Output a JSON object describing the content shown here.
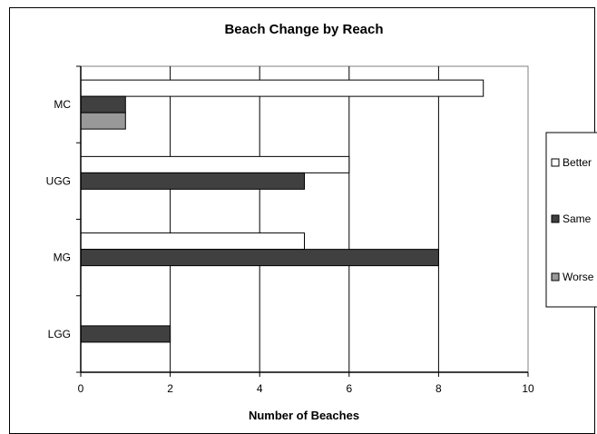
{
  "chart_data": {
    "type": "bar",
    "orientation": "horizontal",
    "title": "Beach Change by Reach",
    "xlabel": "Number of Beaches",
    "ylabel": "",
    "xlim": [
      0,
      10
    ],
    "xticks": [
      0,
      2,
      4,
      6,
      8,
      10
    ],
    "categories": [
      "MC",
      "UGG",
      "MG",
      "LGG"
    ],
    "series": [
      {
        "name": "Better",
        "values": [
          9,
          6,
          5,
          0
        ],
        "color": "#ffffff"
      },
      {
        "name": "Same",
        "values": [
          1,
          5,
          8,
          2
        ],
        "color": "#404040"
      },
      {
        "name": "Worse",
        "values": [
          1,
          0,
          0,
          0
        ],
        "color": "#999999"
      }
    ],
    "grid": "vertical",
    "legend_position": "right"
  }
}
